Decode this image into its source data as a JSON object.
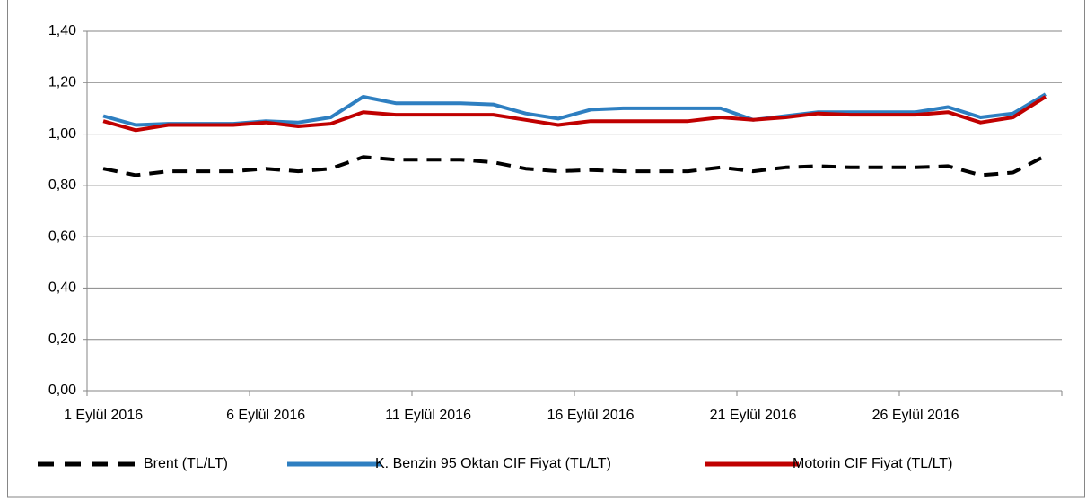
{
  "chart_data": {
    "type": "line",
    "categories": [
      "1 Eylül 2016",
      null,
      null,
      null,
      null,
      "6 Eylül 2016",
      null,
      null,
      null,
      null,
      "11 Eylül 2016",
      null,
      null,
      null,
      null,
      "16 Eylül 2016",
      null,
      null,
      null,
      null,
      "21 Eylül 2016",
      null,
      null,
      null,
      null,
      "26 Eylül 2016",
      null,
      null,
      null,
      null
    ],
    "series": [
      {
        "name": "Brent  (TL/LT)",
        "color": "#000000",
        "dash": true,
        "values": [
          0.865,
          0.84,
          0.855,
          0.855,
          0.855,
          0.865,
          0.855,
          0.865,
          0.91,
          0.9,
          0.9,
          0.9,
          0.89,
          0.865,
          0.855,
          0.86,
          0.855,
          0.855,
          0.855,
          0.87,
          0.855,
          0.87,
          0.875,
          0.87,
          0.87,
          0.87,
          0.875,
          0.84,
          0.85,
          0.915
        ]
      },
      {
        "name": "K. Benzin 95 Oktan CIF Fiyat (TL/LT)",
        "color": "#2e7fc1",
        "values": [
          1.07,
          1.035,
          1.04,
          1.04,
          1.04,
          1.05,
          1.045,
          1.065,
          1.145,
          1.12,
          1.12,
          1.12,
          1.115,
          1.08,
          1.06,
          1.095,
          1.1,
          1.1,
          1.1,
          1.1,
          1.055,
          1.07,
          1.085,
          1.085,
          1.085,
          1.085,
          1.105,
          1.065,
          1.08,
          1.155
        ]
      },
      {
        "name": "Motorin CIF Fiyat (TL/LT)",
        "color": "#c00000",
        "values": [
          1.05,
          1.015,
          1.035,
          1.035,
          1.035,
          1.045,
          1.03,
          1.04,
          1.085,
          1.075,
          1.075,
          1.075,
          1.075,
          1.055,
          1.035,
          1.05,
          1.05,
          1.05,
          1.05,
          1.065,
          1.055,
          1.065,
          1.08,
          1.075,
          1.075,
          1.075,
          1.085,
          1.045,
          1.065,
          1.145
        ]
      }
    ],
    "ylim": [
      0,
      1.4
    ],
    "yticks": [
      {
        "value": 0,
        "label": "0,00"
      },
      {
        "value": 0.2,
        "label": "0,20"
      },
      {
        "value": 0.4,
        "label": "0,40"
      },
      {
        "value": 0.6,
        "label": "0,60"
      },
      {
        "value": 0.8,
        "label": "0,80"
      },
      {
        "value": 1.0,
        "label": "1,00"
      },
      {
        "value": 1.2,
        "label": "1,20"
      },
      {
        "value": 1.4,
        "label": "1,40"
      }
    ],
    "grid": true,
    "legend": "bottom"
  }
}
